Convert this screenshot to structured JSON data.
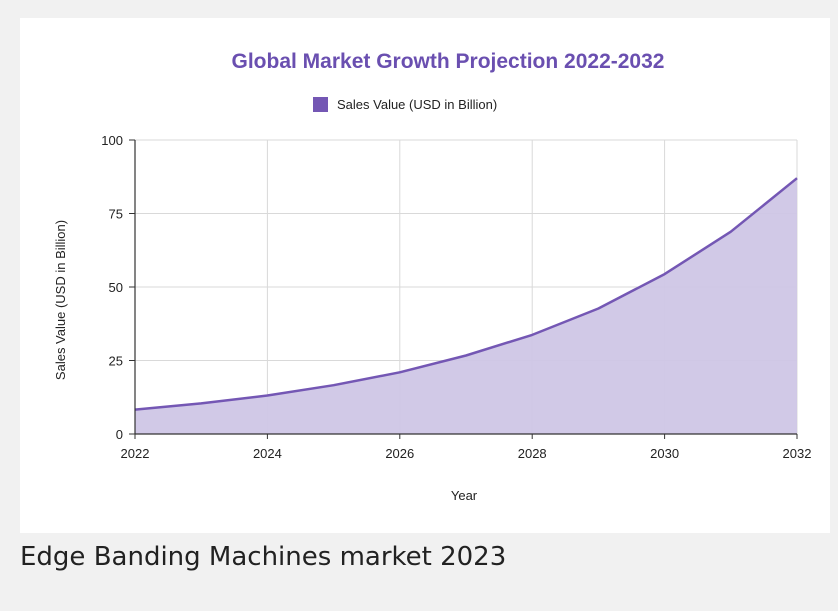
{
  "caption": "Edge Banding Machines market 2023",
  "colors": {
    "title": "#6a4fb0",
    "line": "#7457b4",
    "fill": "#cfc6e6",
    "grid": "#d9d9d9",
    "axis": "#333333",
    "text": "#222222"
  },
  "chart_data": {
    "type": "area",
    "title": "Global Market Growth Projection 2022-2032",
    "xlabel": "Year",
    "ylabel": "Sales Value (USD in Billion)",
    "legend": {
      "position": "top",
      "entries": [
        "Sales Value (USD in Billion)"
      ]
    },
    "grid": true,
    "x": [
      2022,
      2023,
      2024,
      2025,
      2026,
      2027,
      2028,
      2029,
      2030,
      2031,
      2032
    ],
    "xticks": [
      "2022",
      "2024",
      "2026",
      "2028",
      "2030",
      "2032"
    ],
    "xlim": [
      2022,
      2032
    ],
    "ylim": [
      0,
      100
    ],
    "yticks": [
      "0",
      "25",
      "50",
      "75",
      "100"
    ],
    "series": [
      {
        "name": "Sales Value (USD in Billion)",
        "values": [
          8.3,
          10.4,
          13.1,
          16.6,
          21.0,
          26.7,
          33.7,
          42.7,
          54.4,
          68.8,
          87.0
        ]
      }
    ]
  }
}
